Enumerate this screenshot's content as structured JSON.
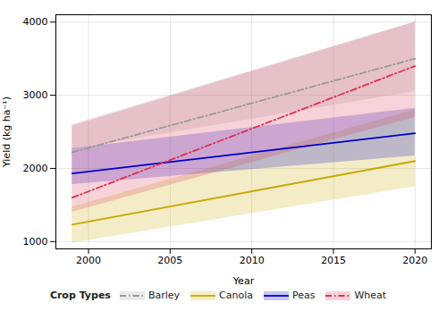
{
  "chart_data": {
    "type": "line",
    "xlabel": "Year",
    "ylabel": "Yield (kg ha⁻¹)",
    "legend_title": "Crop Types",
    "x": [
      1999,
      2020
    ],
    "xlim": [
      1998,
      2021
    ],
    "ylim": [
      900,
      4100
    ],
    "xticks": [
      2000,
      2005,
      2010,
      2015,
      2020
    ],
    "yticks": [
      1000,
      2000,
      3000,
      4000
    ],
    "grid": true,
    "legend": "bottom",
    "series": [
      {
        "name": "Barley",
        "color": "#999999",
        "line_style": "dashdot",
        "values": [
          2220,
          3500
        ],
        "ci_lower": [
          2260,
          3050
        ],
        "ci_upper": [
          2600,
          4000
        ]
      },
      {
        "name": "Canola",
        "color": "#C8A800",
        "line_style": "solid",
        "values": [
          1230,
          2100
        ],
        "ci_lower": [
          980,
          1750
        ],
        "ci_upper": [
          1470,
          2800
        ]
      },
      {
        "name": "Peas",
        "color": "#0000CC",
        "line_style": "solid",
        "values": [
          1930,
          2480
        ],
        "ci_lower": [
          1780,
          2170
        ],
        "ci_upper": [
          2270,
          2820
        ]
      },
      {
        "name": "Wheat",
        "color": "#E03050",
        "line_style": "dashdot",
        "values": [
          1600,
          3400
        ],
        "ci_lower": [
          1400,
          2700
        ],
        "ci_upper": [
          2580,
          4000
        ]
      }
    ]
  }
}
